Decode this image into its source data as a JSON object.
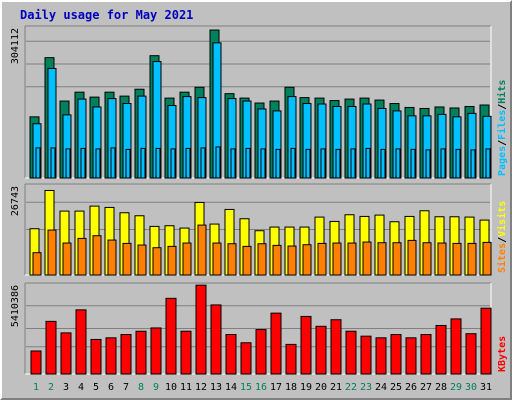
{
  "title": "Daily usage for May 2021",
  "colors": {
    "hits": "#00805c",
    "files": "#00c0ff",
    "pages": "#00c0ff",
    "visits": "#ffff00",
    "sites": "#ff8000",
    "kbytes": "#ff0000",
    "background": "#c0c0c0",
    "weekend_label": "#00805c",
    "weekday_label": "#000080"
  },
  "chart_data": [
    {
      "type": "bar",
      "panel": "hits-files-pages",
      "ymax_label": "304112",
      "ylim": [
        0,
        304112
      ],
      "categories": [
        "1",
        "2",
        "3",
        "4",
        "5",
        "6",
        "7",
        "8",
        "9",
        "10",
        "11",
        "12",
        "13",
        "14",
        "15",
        "16",
        "17",
        "18",
        "19",
        "20",
        "21",
        "22",
        "23",
        "24",
        "25",
        "26",
        "27",
        "28",
        "29",
        "30",
        "31"
      ],
      "weekend_days": [
        "1",
        "2",
        "8",
        "9",
        "15",
        "16",
        "22",
        "23",
        "29",
        "30"
      ],
      "series": [
        {
          "name": "Hits",
          "values": [
            124000,
            244000,
            156000,
            174000,
            164000,
            174000,
            166000,
            180000,
            248000,
            162000,
            174000,
            184000,
            300000,
            171000,
            162000,
            152000,
            156000,
            184000,
            163000,
            162000,
            157000,
            160000,
            162000,
            158000,
            151000,
            143000,
            141000,
            144000,
            142000,
            145000,
            148000
          ]
        },
        {
          "name": "Files",
          "values": [
            110000,
            222000,
            128000,
            160000,
            144000,
            161000,
            151000,
            166000,
            236000,
            147000,
            165000,
            163000,
            274000,
            161000,
            156000,
            140000,
            136000,
            165000,
            151000,
            150000,
            145000,
            145000,
            150000,
            141000,
            136000,
            126000,
            126000,
            129000,
            124000,
            131000,
            125000
          ]
        },
        {
          "name": "Pages",
          "values": [
            61000,
            61000,
            59000,
            60000,
            59000,
            61000,
            58000,
            60000,
            60000,
            59000,
            60000,
            61000,
            63000,
            59000,
            60000,
            59000,
            58000,
            60000,
            58000,
            59000,
            58000,
            59000,
            60000,
            58000,
            59000,
            58000,
            57000,
            59000,
            58000,
            57000,
            59000
          ]
        }
      ],
      "legend": [
        "Pages",
        "Files",
        "Hits"
      ]
    },
    {
      "type": "bar",
      "panel": "visits-sites",
      "ymax_label": "26743",
      "ylim": [
        0,
        26743
      ],
      "categories": [
        "1",
        "2",
        "3",
        "4",
        "5",
        "6",
        "7",
        "8",
        "9",
        "10",
        "11",
        "12",
        "13",
        "14",
        "15",
        "16",
        "17",
        "18",
        "19",
        "20",
        "21",
        "22",
        "23",
        "24",
        "25",
        "26",
        "27",
        "28",
        "29",
        "30",
        "31"
      ],
      "series": [
        {
          "name": "Visits",
          "values": [
            13900,
            25400,
            19200,
            19200,
            20700,
            20300,
            18700,
            17800,
            14600,
            14800,
            14100,
            21800,
            15300,
            19700,
            16900,
            13300,
            14400,
            14400,
            14400,
            17400,
            16100,
            18100,
            17600,
            18000,
            16000,
            17600,
            19300,
            17500,
            17500,
            17400,
            16500
          ]
        },
        {
          "name": "Sites",
          "values": [
            6700,
            13500,
            9600,
            11000,
            11800,
            10500,
            9500,
            9000,
            8200,
            8600,
            9600,
            15000,
            9600,
            9400,
            8600,
            9400,
            8900,
            8700,
            9100,
            9500,
            9600,
            9600,
            9900,
            9700,
            9700,
            10400,
            9700,
            9600,
            9500,
            9500,
            9800
          ]
        }
      ],
      "legend": [
        "Sites",
        "Visits"
      ]
    },
    {
      "type": "bar",
      "panel": "kbytes",
      "ymax_label": "5410386",
      "ylim": [
        0,
        5410386
      ],
      "categories": [
        "1",
        "2",
        "3",
        "4",
        "5",
        "6",
        "7",
        "8",
        "9",
        "10",
        "11",
        "12",
        "13",
        "14",
        "15",
        "16",
        "17",
        "18",
        "19",
        "20",
        "21",
        "22",
        "23",
        "24",
        "25",
        "26",
        "27",
        "28",
        "29",
        "30",
        "31"
      ],
      "series": [
        {
          "name": "KBytes",
          "values": [
            1400000,
            3200000,
            2500000,
            3900000,
            2100000,
            2200000,
            2400000,
            2600000,
            2800000,
            4600000,
            2600000,
            5400000,
            4200000,
            2400000,
            1900000,
            2700000,
            3700000,
            1800000,
            3500000,
            2900000,
            3300000,
            2600000,
            2300000,
            2200000,
            2400000,
            2200000,
            2400000,
            2950000,
            3350000,
            2450000,
            4000000
          ]
        }
      ],
      "legend": [
        "KBytes"
      ]
    }
  ]
}
